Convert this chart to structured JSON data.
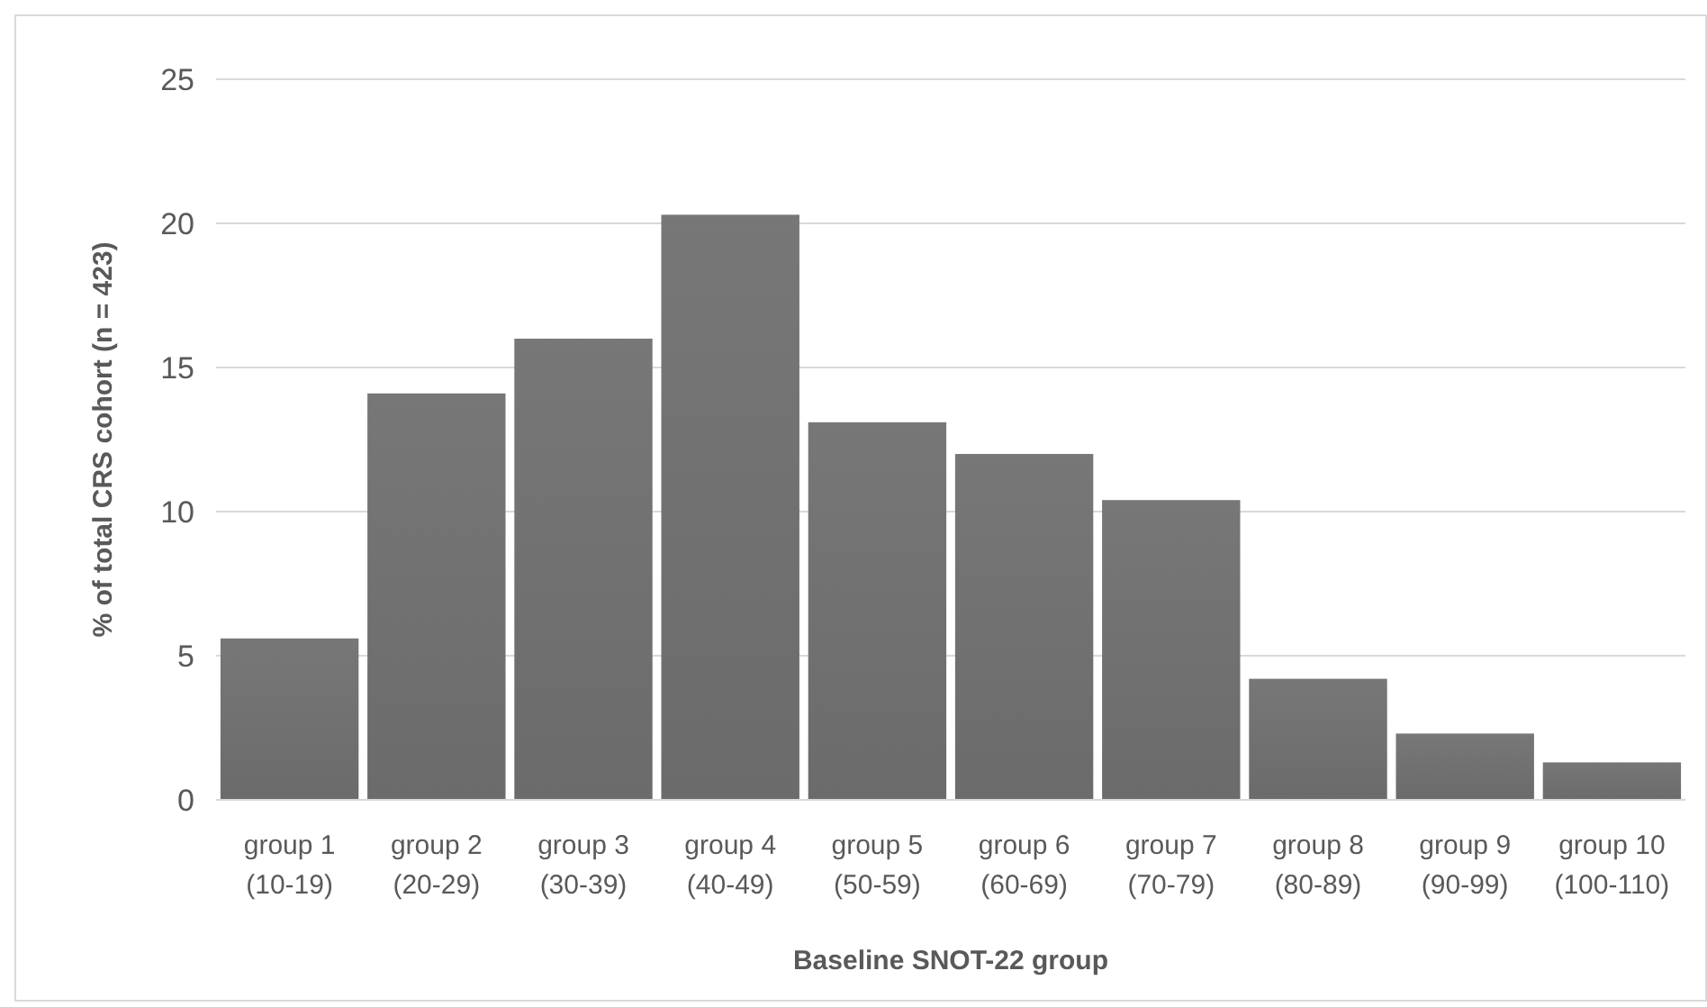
{
  "chart_data": {
    "type": "bar",
    "xlabel": "Baseline SNOT-22 group",
    "ylabel": "% of total CRS cohort (n = 423)",
    "categories": [
      "group 1\n(10-19)",
      "group 2\n(20-29)",
      "group 3\n(30-39)",
      "group 4\n(40-49)",
      "group 5\n(50-59)",
      "group 6\n(60-69)",
      "group 7\n(70-79)",
      "group 8\n(80-89)",
      "group 9\n(90-99)",
      "group 10\n(100-110)"
    ],
    "values": [
      5.6,
      14.1,
      16.0,
      20.3,
      13.1,
      12.0,
      10.4,
      4.2,
      2.3,
      1.3
    ],
    "color": "#6b6b6b",
    "ylim": [
      0,
      25
    ],
    "yticks": [
      0,
      5,
      10,
      15,
      20,
      25
    ],
    "grid": "y"
  }
}
